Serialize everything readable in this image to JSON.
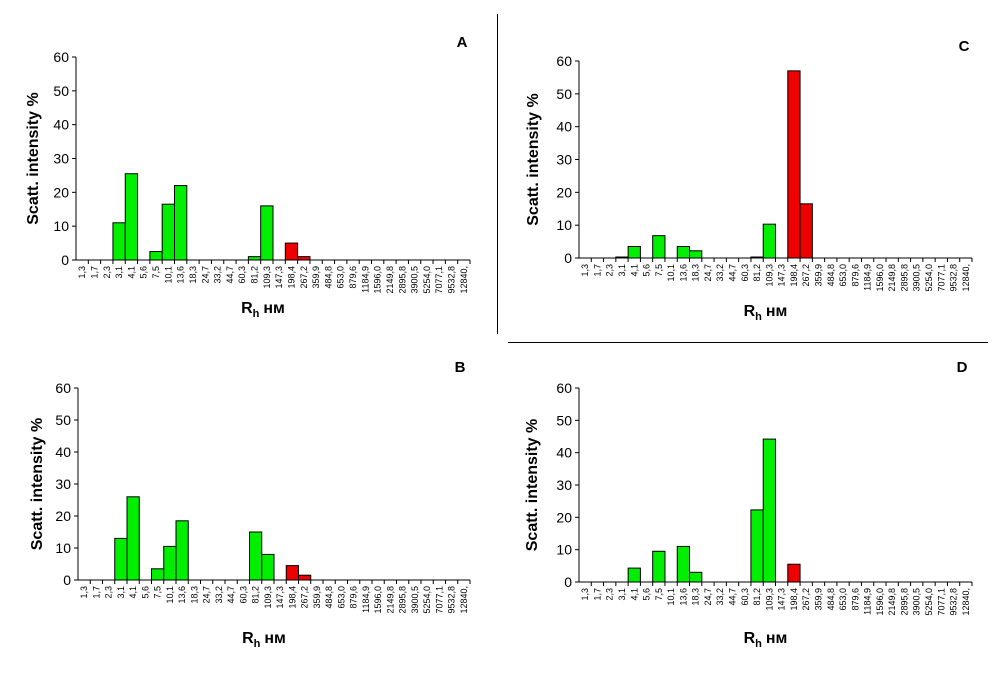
{
  "categories": [
    "1,3",
    "1,7",
    "2,3",
    "3,1",
    "4,1",
    "5,6",
    "7,5",
    "10,1",
    "13,6",
    "18,3",
    "24,7",
    "33,2",
    "44,7",
    "60,3",
    "81,2",
    "109,3",
    "147,3",
    "198,4",
    "267,2",
    "359,9",
    "484,8",
    "653,0",
    "879,6",
    "1184,9",
    "1596,0",
    "2149,8",
    "2895,8",
    "3900,5",
    "5254,0",
    "7077,1",
    "9532,8",
    "12840,"
  ],
  "colors": {
    "green": "#00ee00",
    "red": "#ee0000"
  },
  "chart_data": [
    {
      "type": "bar",
      "panel": "A",
      "xlabel_main": "R",
      "xlabel_sub": "h",
      "xlabel_unit": "нм",
      "ylabel": "Scatt. intensity %",
      "ylim": [
        0,
        60
      ],
      "yticks": [
        0,
        10,
        20,
        30,
        40,
        50,
        60
      ],
      "values": [
        0,
        0,
        0,
        11,
        25.5,
        0,
        2.5,
        16.5,
        22,
        0,
        0,
        0,
        0,
        0,
        1,
        16,
        0,
        5,
        1,
        0,
        0,
        0,
        0,
        0,
        0,
        0,
        0,
        0,
        0,
        0,
        0,
        0
      ],
      "colors": [
        "green",
        "green",
        "green",
        "green",
        "green",
        "green",
        "green",
        "green",
        "green",
        "green",
        "green",
        "green",
        "green",
        "green",
        "green",
        "green",
        "green",
        "red",
        "red",
        "green",
        "green",
        "green",
        "green",
        "green",
        "green",
        "green",
        "green",
        "green",
        "green",
        "green",
        "green",
        "green"
      ]
    },
    {
      "type": "bar",
      "panel": "B",
      "xlabel_main": "R",
      "xlabel_sub": "h",
      "xlabel_unit": "нм",
      "ylabel": "Scatt. intensity %",
      "ylim": [
        0,
        60
      ],
      "yticks": [
        0,
        10,
        20,
        30,
        40,
        50,
        60
      ],
      "values": [
        0,
        0,
        0,
        13,
        26,
        0,
        3.5,
        10.5,
        18.5,
        0,
        0,
        0,
        0,
        0,
        15,
        8,
        0,
        4.5,
        1.5,
        0,
        0,
        0,
        0,
        0,
        0,
        0,
        0,
        0,
        0,
        0,
        0,
        0
      ],
      "colors": [
        "green",
        "green",
        "green",
        "green",
        "green",
        "green",
        "green",
        "green",
        "green",
        "green",
        "green",
        "green",
        "green",
        "green",
        "green",
        "green",
        "green",
        "red",
        "red",
        "green",
        "green",
        "green",
        "green",
        "green",
        "green",
        "green",
        "green",
        "green",
        "green",
        "green",
        "green",
        "green"
      ]
    },
    {
      "type": "bar",
      "panel": "C",
      "xlabel_main": "R",
      "xlabel_sub": "h",
      "xlabel_unit": "нм",
      "ylabel": "Scatt. intensity %",
      "ylim": [
        0,
        60
      ],
      "yticks": [
        0,
        10,
        20,
        30,
        40,
        50,
        60
      ],
      "values": [
        0,
        0,
        0,
        0.3,
        3.5,
        0,
        6.8,
        0,
        3.5,
        2.2,
        0,
        0,
        0,
        0,
        0.3,
        10.3,
        0,
        57,
        16.5,
        0,
        0,
        0,
        0,
        0,
        0,
        0,
        0,
        0,
        0,
        0,
        0,
        0
      ],
      "colors": [
        "green",
        "green",
        "green",
        "green",
        "green",
        "green",
        "green",
        "green",
        "green",
        "green",
        "green",
        "green",
        "green",
        "green",
        "green",
        "green",
        "green",
        "red",
        "red",
        "green",
        "green",
        "green",
        "green",
        "green",
        "green",
        "green",
        "green",
        "green",
        "green",
        "green",
        "green",
        "green"
      ]
    },
    {
      "type": "bar",
      "panel": "D",
      "xlabel_main": "R",
      "xlabel_sub": "h",
      "xlabel_unit": "нм",
      "ylabel": "Scatt. intensity %",
      "ylim": [
        0,
        60
      ],
      "yticks": [
        0,
        10,
        20,
        30,
        40,
        50,
        60
      ],
      "values": [
        0,
        0,
        0,
        0,
        4.3,
        0,
        9.5,
        0,
        11,
        3,
        0,
        0,
        0,
        0,
        22.3,
        44.2,
        0,
        5.5,
        0,
        0,
        0,
        0,
        0,
        0,
        0,
        0,
        0,
        0,
        0,
        0,
        0,
        0
      ],
      "colors": [
        "green",
        "green",
        "green",
        "green",
        "green",
        "green",
        "green",
        "green",
        "green",
        "green",
        "green",
        "green",
        "green",
        "green",
        "green",
        "green",
        "green",
        "red",
        "red",
        "green",
        "green",
        "green",
        "green",
        "green",
        "green",
        "green",
        "green",
        "green",
        "green",
        "green",
        "green",
        "green"
      ]
    }
  ]
}
